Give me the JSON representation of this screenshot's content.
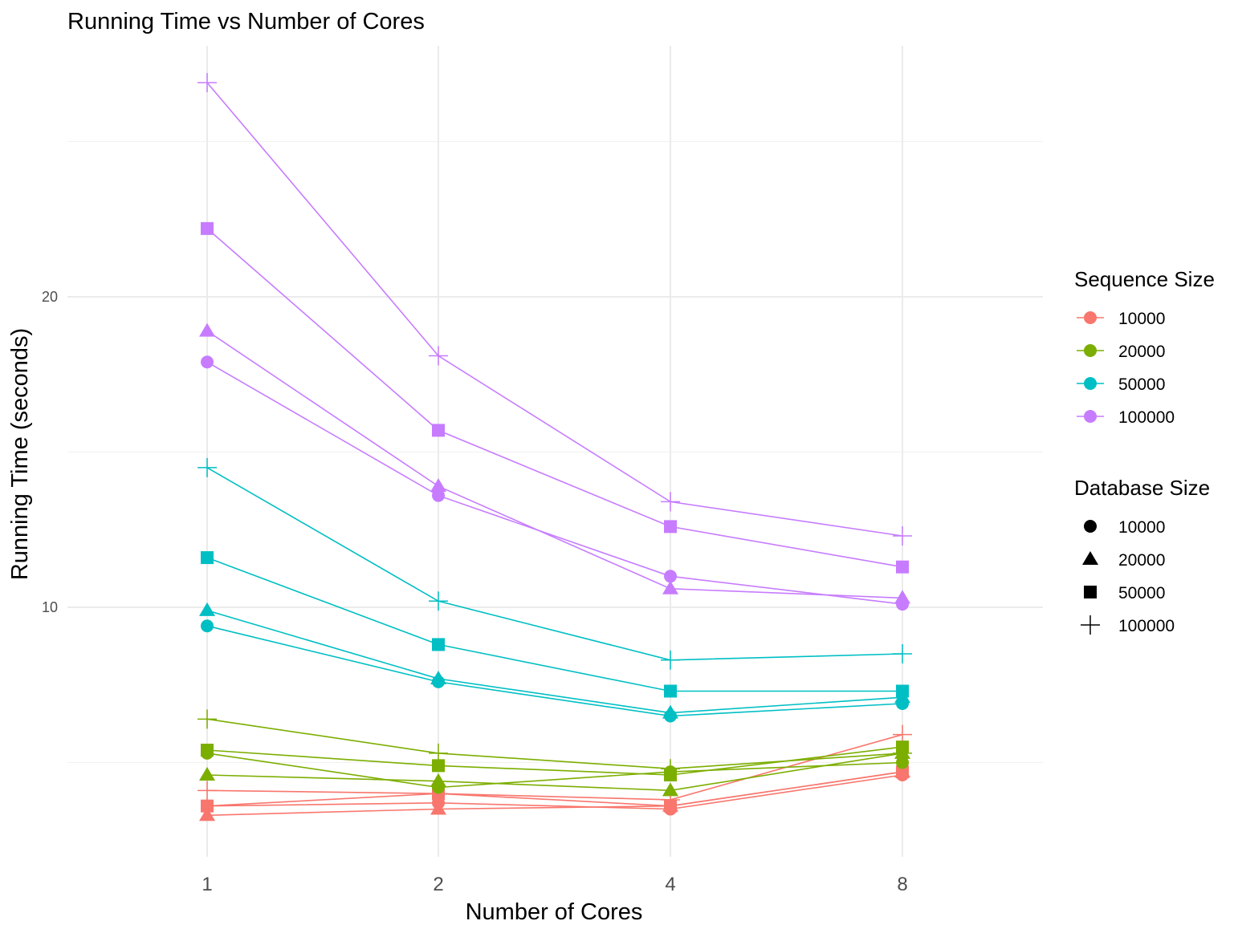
{
  "chart_data": {
    "type": "line",
    "title": "Running Time vs Number of Cores",
    "xlabel": "Number of Cores",
    "ylabel": "Running Time (seconds)",
    "x_scale": "log2",
    "categories": [
      "1",
      "2",
      "4",
      "8"
    ],
    "x": [
      1,
      2,
      4,
      8
    ],
    "y_ticks": [
      10,
      20
    ],
    "ylim": [
      2.8,
      27.2
    ],
    "grid": true,
    "legend_placement": "right",
    "legends": [
      {
        "title": "Sequence Size",
        "encoding": "color",
        "entries": [
          {
            "label": "10000",
            "color": "#F8766D"
          },
          {
            "label": "20000",
            "color": "#7CAE00"
          },
          {
            "label": "50000",
            "color": "#00BFC4"
          },
          {
            "label": "100000",
            "color": "#C77CFF"
          }
        ]
      },
      {
        "title": "Database Size",
        "encoding": "shape",
        "entries": [
          {
            "label": "10000",
            "shape": "circle"
          },
          {
            "label": "20000",
            "shape": "triangle"
          },
          {
            "label": "50000",
            "shape": "square"
          },
          {
            "label": "100000",
            "shape": "plus"
          }
        ]
      }
    ],
    "series": [
      {
        "sequence_size": "10000",
        "database_size": "10000",
        "values": [
          3.6,
          3.7,
          3.5,
          4.6
        ]
      },
      {
        "sequence_size": "10000",
        "database_size": "20000",
        "values": [
          3.3,
          3.5,
          3.6,
          4.7
        ]
      },
      {
        "sequence_size": "10000",
        "database_size": "50000",
        "values": [
          3.6,
          4.0,
          3.6,
          4.7
        ]
      },
      {
        "sequence_size": "10000",
        "database_size": "100000",
        "values": [
          4.1,
          4.0,
          3.8,
          5.9
        ]
      },
      {
        "sequence_size": "20000",
        "database_size": "10000",
        "values": [
          5.3,
          4.2,
          4.7,
          5.0
        ]
      },
      {
        "sequence_size": "20000",
        "database_size": "20000",
        "values": [
          4.6,
          4.4,
          4.1,
          5.3
        ]
      },
      {
        "sequence_size": "20000",
        "database_size": "50000",
        "values": [
          5.4,
          4.9,
          4.6,
          5.5
        ]
      },
      {
        "sequence_size": "20000",
        "database_size": "100000",
        "values": [
          6.4,
          5.3,
          4.8,
          5.3
        ]
      },
      {
        "sequence_size": "50000",
        "database_size": "10000",
        "values": [
          9.4,
          7.6,
          6.5,
          6.9
        ]
      },
      {
        "sequence_size": "50000",
        "database_size": "20000",
        "values": [
          9.9,
          7.7,
          6.6,
          7.1
        ]
      },
      {
        "sequence_size": "50000",
        "database_size": "50000",
        "values": [
          11.6,
          8.8,
          7.3,
          7.3
        ]
      },
      {
        "sequence_size": "50000",
        "database_size": "100000",
        "values": [
          14.5,
          10.2,
          8.3,
          8.5
        ]
      },
      {
        "sequence_size": "100000",
        "database_size": "10000",
        "values": [
          17.9,
          13.6,
          11.0,
          10.1
        ]
      },
      {
        "sequence_size": "100000",
        "database_size": "20000",
        "values": [
          18.9,
          13.9,
          10.6,
          10.3
        ]
      },
      {
        "sequence_size": "100000",
        "database_size": "50000",
        "values": [
          22.2,
          15.7,
          12.6,
          11.3
        ]
      },
      {
        "sequence_size": "100000",
        "database_size": "100000",
        "values": [
          26.9,
          18.1,
          13.4,
          12.3
        ]
      }
    ]
  }
}
